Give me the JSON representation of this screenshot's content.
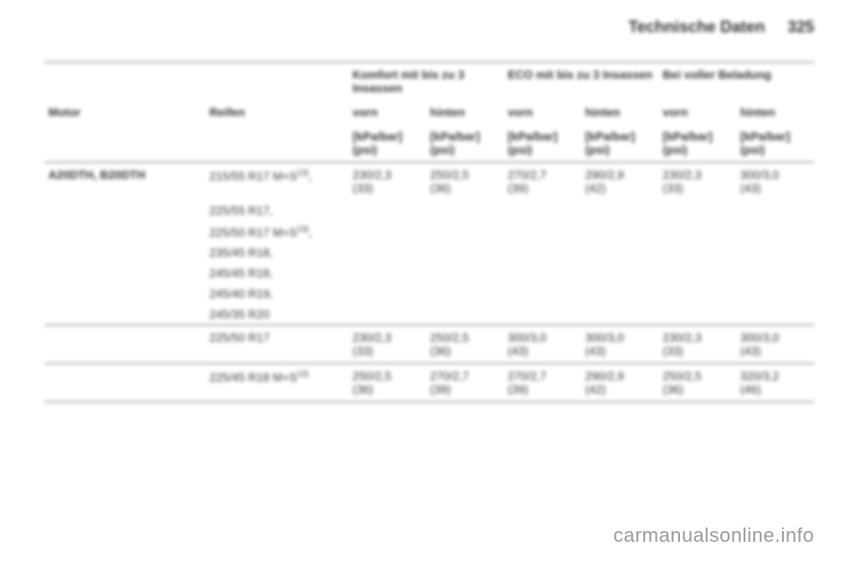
{
  "page_header": {
    "title": "Technische Daten",
    "number": "325"
  },
  "table": {
    "group_headers": {
      "komfort": "Komfort mit bis zu 3 Insassen",
      "eco": "ECO mit bis zu 3 Insassen",
      "beladung": "Bei voller Beladung"
    },
    "col_headers": {
      "motor": "Motor",
      "reifen": "Reifen",
      "vorn": "vorn",
      "hinten": "hinten"
    },
    "unit_row": "[kPa/bar] (psi)",
    "motor": "A20DTH, B20DTH",
    "tires": {
      "t0": "215/55 R17 M+S",
      "t0_sup": "13)",
      "t1": "225/55 R17,",
      "t2": "225/50 R17 M+S",
      "t2_sup": "13)",
      "t2_tail": ",",
      "t3": "235/45 R18,",
      "t4": "245/45 R18,",
      "t5": "245/40 R19,",
      "t6": "245/35 R20",
      "t7": "225/50 R17",
      "t8": "225/45 R18 M+S",
      "t8_sup": "13)"
    },
    "row1": {
      "c1a": "230/2,3",
      "c1b": "(33)",
      "c2a": "250/2,5",
      "c2b": "(36)",
      "c3a": "270/2,7",
      "c3b": "(39)",
      "c4a": "290/2,9",
      "c4b": "(42)",
      "c5a": "230/2,3",
      "c5b": "(33)",
      "c6a": "300/3,0",
      "c6b": "(43)"
    },
    "row2": {
      "c1a": "230/2,3",
      "c1b": "(33)",
      "c2a": "250/2,5",
      "c2b": "(36)",
      "c3a": "300/3,0",
      "c3b": "(43)",
      "c4a": "300/3,0",
      "c4b": "(43)",
      "c5a": "230/2,3",
      "c5b": "(33)",
      "c6a": "300/3,0",
      "c6b": "(43)"
    },
    "row3": {
      "c1a": "250/2,5",
      "c1b": "(36)",
      "c2a": "270/2,7",
      "c2b": "(39)",
      "c3a": "270/2,7",
      "c3b": "(39)",
      "c4a": "290/2,9",
      "c4b": "(42)",
      "c5a": "250/2,5",
      "c5b": "(36)",
      "c6a": "320/3,2",
      "c6b": "(46)"
    }
  },
  "watermark": "carmanualsonline.info"
}
